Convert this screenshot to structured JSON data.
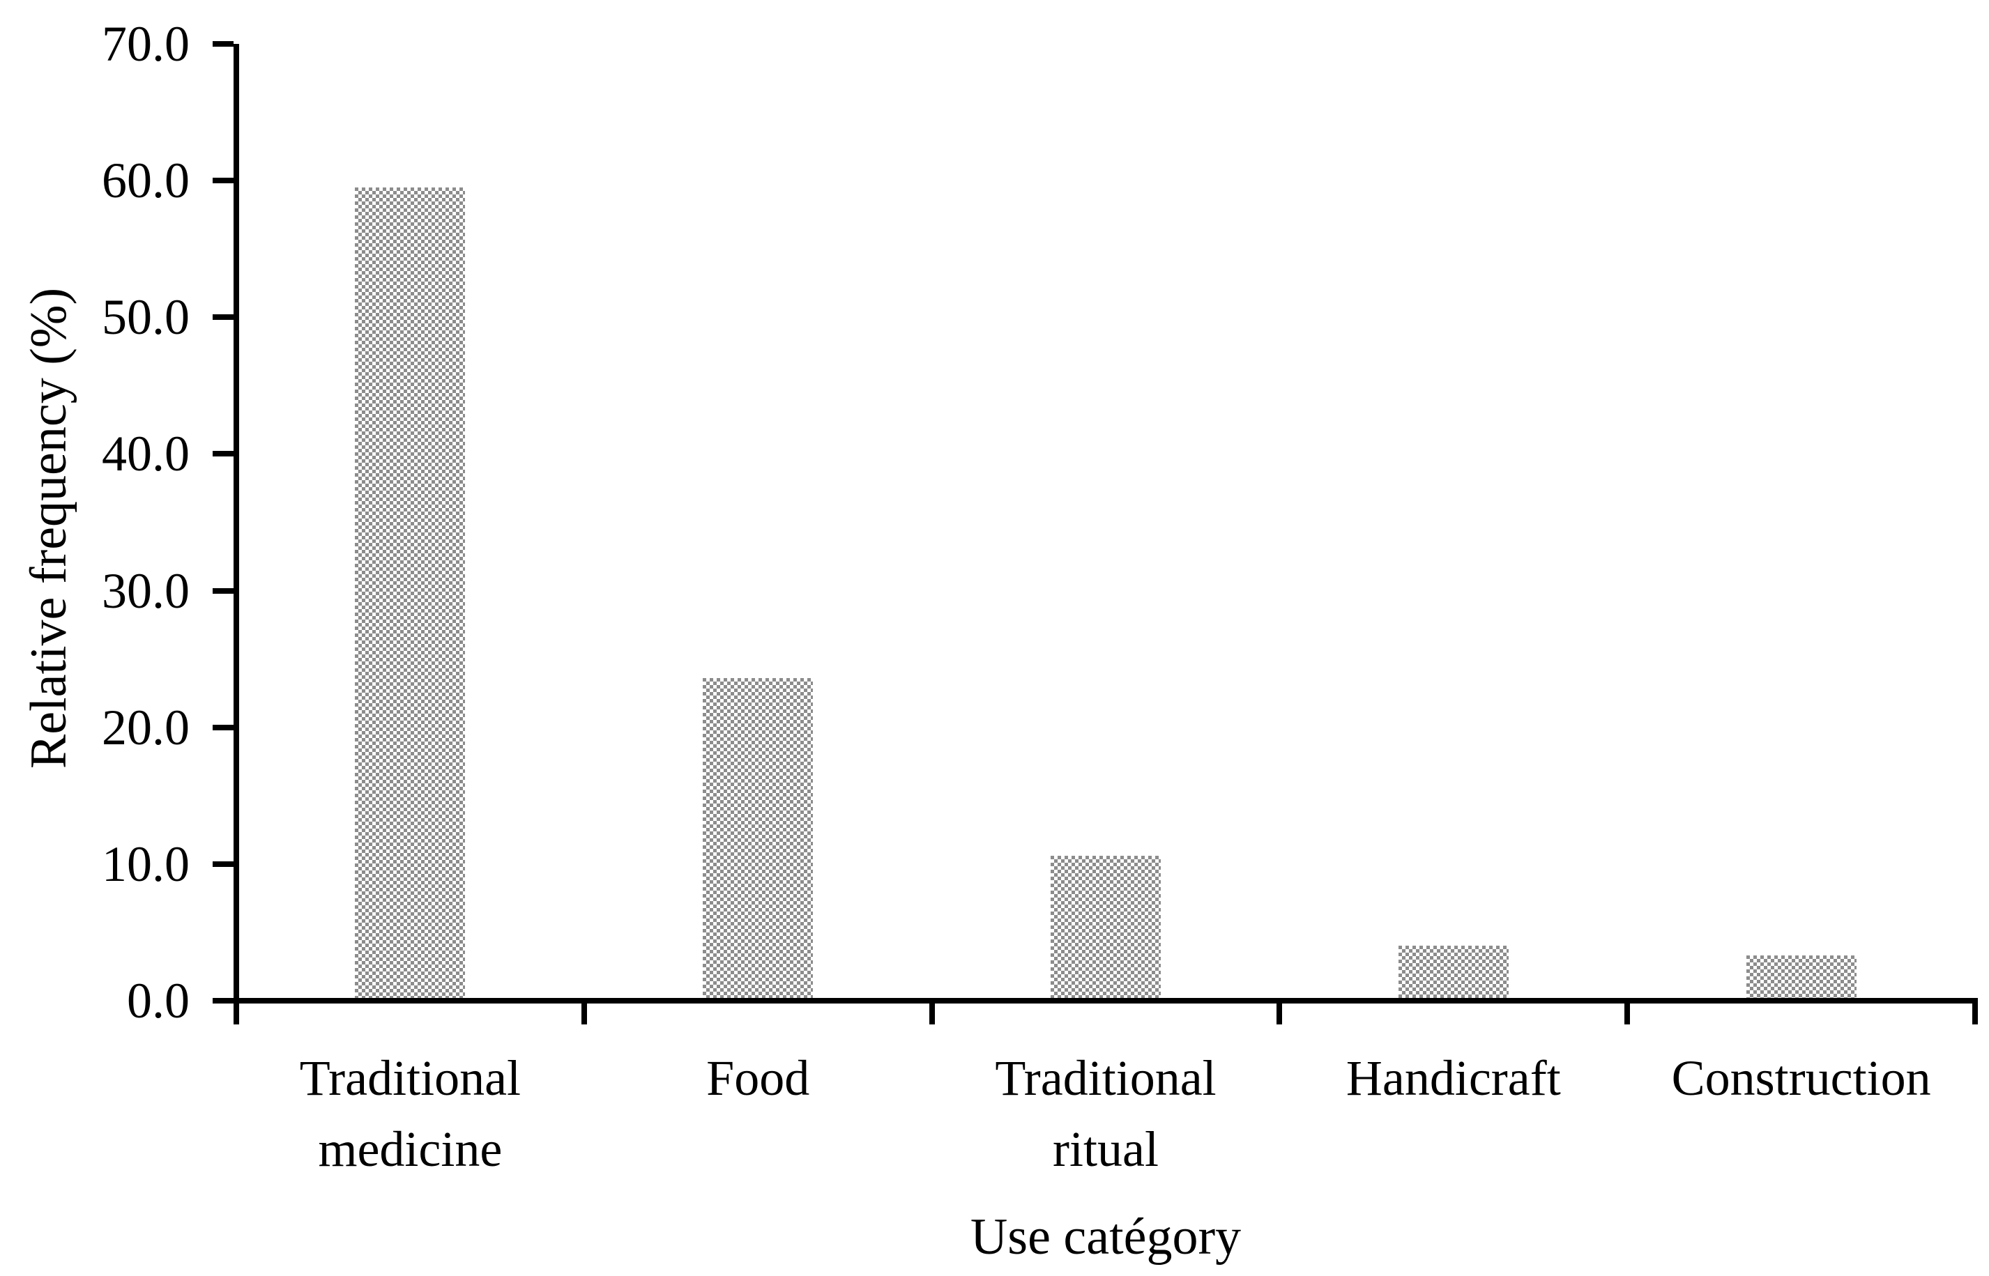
{
  "chart_data": {
    "type": "bar",
    "title": "",
    "xlabel": "Use catégory",
    "ylabel": "Relative frequency (%)",
    "categories": [
      "Traditional medicine",
      "Food",
      "Traditional ritual",
      "Handicraft",
      "Construction"
    ],
    "category_display_lines": [
      [
        "Traditional",
        "medicine"
      ],
      [
        "Food"
      ],
      [
        "Traditional",
        "ritual"
      ],
      [
        "Handicraft"
      ],
      [
        "Construction"
      ]
    ],
    "values": [
      59.3,
      23.4,
      10.4,
      3.8,
      3.1
    ],
    "series": [
      {
        "name": "Relative frequency",
        "values": [
          59.3,
          23.4,
          10.4,
          3.8,
          3.1
        ]
      }
    ],
    "ylim": [
      0,
      70
    ],
    "yticks": [
      0,
      10,
      20,
      30,
      40,
      50,
      60,
      70
    ],
    "ytick_labels": [
      "0.0",
      "10.0",
      "20.0",
      "30.0",
      "40.0",
      "50.0",
      "60.0",
      "70.0"
    ],
    "grid": false,
    "legend": "none",
    "bar_pattern": "checkerboard",
    "colors": {
      "bar_pattern_gray": "#8c8c8c",
      "bar_pattern_bg": "#ffffff",
      "axis": "#000000",
      "text": "#000000",
      "background": "#ffffff"
    }
  }
}
